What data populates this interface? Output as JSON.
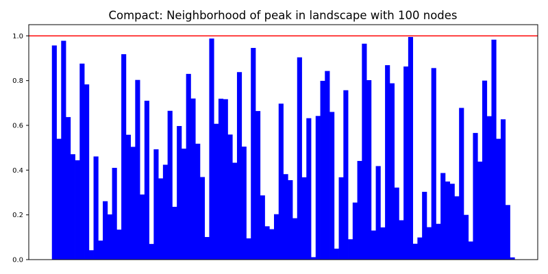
{
  "chart_data": {
    "type": "bar",
    "title": "Compact: Neighborhood of peak in landscape with 100 nodes",
    "xlabel": "",
    "ylabel": "",
    "ylim": [
      0,
      1.05
    ],
    "xlim": [
      -5,
      105
    ],
    "x_ticks_visible": false,
    "y_ticks": [
      0.0,
      0.2,
      0.4,
      0.6,
      0.8,
      1.0
    ],
    "y_tick_labels": [
      "0.0",
      "0.2",
      "0.4",
      "0.6",
      "0.8",
      "1.0"
    ],
    "grid": false,
    "bar_color": "#0000ff",
    "reference_line": {
      "y": 1.0,
      "color": "#ff0000"
    },
    "values": [
      0.957,
      0.54,
      0.978,
      0.637,
      0.471,
      0.444,
      0.876,
      0.783,
      0.042,
      0.461,
      0.085,
      0.261,
      0.202,
      0.41,
      0.134,
      0.918,
      0.558,
      0.504,
      0.803,
      0.291,
      0.71,
      0.07,
      0.493,
      0.363,
      0.424,
      0.665,
      0.236,
      0.597,
      0.496,
      0.83,
      0.72,
      0.518,
      0.369,
      0.101,
      0.988,
      0.607,
      0.719,
      0.717,
      0.559,
      0.433,
      0.838,
      0.505,
      0.095,
      0.946,
      0.664,
      0.287,
      0.149,
      0.136,
      0.203,
      0.697,
      0.382,
      0.355,
      0.185,
      0.904,
      0.368,
      0.632,
      0.011,
      0.642,
      0.799,
      0.843,
      0.66,
      0.049,
      0.368,
      0.757,
      0.091,
      0.255,
      0.441,
      0.965,
      0.802,
      0.13,
      0.418,
      0.144,
      0.869,
      0.788,
      0.322,
      0.176,
      0.863,
      0.995,
      0.071,
      0.099,
      0.303,
      0.145,
      0.856,
      0.16,
      0.387,
      0.349,
      0.339,
      0.283,
      0.678,
      0.2,
      0.081,
      0.566,
      0.438,
      0.8,
      0.641,
      0.983,
      0.54,
      0.627,
      0.244,
      0.01
    ]
  }
}
